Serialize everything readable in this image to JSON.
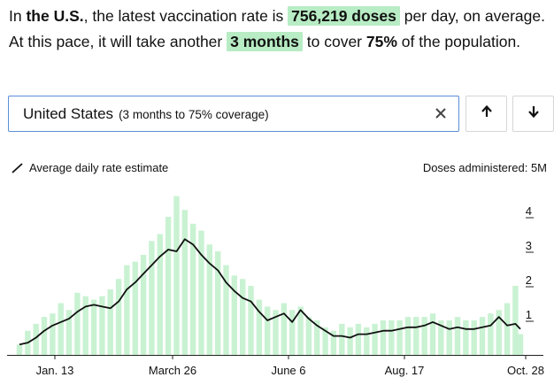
{
  "headline": {
    "part1": "In ",
    "place": "the U.S.",
    "part2": ", the latest vaccination rate is ",
    "rate": "756,219 doses",
    "part3": " per day, on average. At this pace, it will take another ",
    "duration": "3 months",
    "part4": " to cover ",
    "coverage": "75%",
    "part5": " of the population."
  },
  "selector": {
    "country": "United States",
    "note": "(3 months to 75% coverage)"
  },
  "controls": {
    "clear_icon": "close-icon",
    "up_icon": "arrow-up-icon",
    "down_icon": "arrow-down-icon"
  },
  "legend": {
    "line_label": "Average daily rate estimate",
    "bars_label": "Doses administered:",
    "top_tick": "5M"
  },
  "colors": {
    "highlight": "#b8ecc4",
    "bars": "#c9f2d2",
    "line": "#111111",
    "selector_border": "#5b8ed6"
  },
  "chart_data": {
    "type": "bar",
    "ylabel": "Doses administered:",
    "ylim": [
      0,
      5
    ],
    "y_ticks": [
      {
        "value": 5,
        "label": "5M"
      },
      {
        "value": 4,
        "label": "4"
      },
      {
        "value": 3,
        "label": "3"
      },
      {
        "value": 2,
        "label": "2"
      },
      {
        "value": 1,
        "label": "1"
      }
    ],
    "x_ticks": [
      "Jan. 13",
      "March 26",
      "June 6",
      "Aug. 17",
      "Oct. 28"
    ],
    "series": [
      {
        "name": "Average daily rate estimate",
        "kind": "line",
        "points": [
          {
            "day": 0,
            "value": 0.3
          },
          {
            "day": 5,
            "value": 0.35
          },
          {
            "day": 10,
            "value": 0.5
          },
          {
            "day": 15,
            "value": 0.7
          },
          {
            "day": 20,
            "value": 0.85
          },
          {
            "day": 25,
            "value": 0.95
          },
          {
            "day": 30,
            "value": 1.05
          },
          {
            "day": 35,
            "value": 1.25
          },
          {
            "day": 40,
            "value": 1.4
          },
          {
            "day": 45,
            "value": 1.45
          },
          {
            "day": 50,
            "value": 1.4
          },
          {
            "day": 55,
            "value": 1.35
          },
          {
            "day": 60,
            "value": 1.55
          },
          {
            "day": 65,
            "value": 1.9
          },
          {
            "day": 70,
            "value": 2.1
          },
          {
            "day": 75,
            "value": 2.35
          },
          {
            "day": 80,
            "value": 2.6
          },
          {
            "day": 85,
            "value": 2.85
          },
          {
            "day": 90,
            "value": 3.05
          },
          {
            "day": 95,
            "value": 3.0
          },
          {
            "day": 100,
            "value": 3.35
          },
          {
            "day": 105,
            "value": 3.2
          },
          {
            "day": 110,
            "value": 2.9
          },
          {
            "day": 115,
            "value": 2.65
          },
          {
            "day": 120,
            "value": 2.45
          },
          {
            "day": 125,
            "value": 2.1
          },
          {
            "day": 130,
            "value": 1.85
          },
          {
            "day": 135,
            "value": 1.65
          },
          {
            "day": 140,
            "value": 1.55
          },
          {
            "day": 145,
            "value": 1.25
          },
          {
            "day": 150,
            "value": 1.0
          },
          {
            "day": 155,
            "value": 1.1
          },
          {
            "day": 160,
            "value": 1.2
          },
          {
            "day": 165,
            "value": 0.95
          },
          {
            "day": 170,
            "value": 1.3
          },
          {
            "day": 175,
            "value": 1.05
          },
          {
            "day": 180,
            "value": 0.85
          },
          {
            "day": 185,
            "value": 0.7
          },
          {
            "day": 190,
            "value": 0.55
          },
          {
            "day": 195,
            "value": 0.55
          },
          {
            "day": 200,
            "value": 0.5
          },
          {
            "day": 205,
            "value": 0.6
          },
          {
            "day": 210,
            "value": 0.6
          },
          {
            "day": 215,
            "value": 0.65
          },
          {
            "day": 220,
            "value": 0.7
          },
          {
            "day": 225,
            "value": 0.7
          },
          {
            "day": 230,
            "value": 0.75
          },
          {
            "day": 235,
            "value": 0.8
          },
          {
            "day": 240,
            "value": 0.8
          },
          {
            "day": 245,
            "value": 0.85
          },
          {
            "day": 250,
            "value": 0.95
          },
          {
            "day": 255,
            "value": 0.85
          },
          {
            "day": 260,
            "value": 0.75
          },
          {
            "day": 265,
            "value": 0.8
          },
          {
            "day": 270,
            "value": 0.75
          },
          {
            "day": 275,
            "value": 0.75
          },
          {
            "day": 280,
            "value": 0.8
          },
          {
            "day": 285,
            "value": 0.85
          },
          {
            "day": 290,
            "value": 1.1
          },
          {
            "day": 295,
            "value": 0.85
          },
          {
            "day": 300,
            "value": 0.9
          },
          {
            "day": 303,
            "value": 0.75
          }
        ]
      },
      {
        "name": "Doses administered",
        "kind": "bar",
        "points": [
          {
            "day": 0,
            "value": 0.3
          },
          {
            "day": 5,
            "value": 0.7
          },
          {
            "day": 10,
            "value": 0.9
          },
          {
            "day": 15,
            "value": 1.1
          },
          {
            "day": 20,
            "value": 1.2
          },
          {
            "day": 25,
            "value": 1.5
          },
          {
            "day": 30,
            "value": 1.3
          },
          {
            "day": 35,
            "value": 1.8
          },
          {
            "day": 40,
            "value": 1.7
          },
          {
            "day": 45,
            "value": 1.6
          },
          {
            "day": 50,
            "value": 1.7
          },
          {
            "day": 55,
            "value": 1.9
          },
          {
            "day": 60,
            "value": 2.2
          },
          {
            "day": 65,
            "value": 2.6
          },
          {
            "day": 70,
            "value": 2.7
          },
          {
            "day": 75,
            "value": 2.9
          },
          {
            "day": 80,
            "value": 3.3
          },
          {
            "day": 85,
            "value": 3.5
          },
          {
            "day": 90,
            "value": 4.0
          },
          {
            "day": 95,
            "value": 4.6
          },
          {
            "day": 100,
            "value": 4.2
          },
          {
            "day": 105,
            "value": 3.8
          },
          {
            "day": 110,
            "value": 3.6
          },
          {
            "day": 115,
            "value": 3.2
          },
          {
            "day": 120,
            "value": 3.0
          },
          {
            "day": 125,
            "value": 2.6
          },
          {
            "day": 130,
            "value": 2.3
          },
          {
            "day": 135,
            "value": 2.2
          },
          {
            "day": 140,
            "value": 2.0
          },
          {
            "day": 145,
            "value": 1.6
          },
          {
            "day": 150,
            "value": 1.4
          },
          {
            "day": 155,
            "value": 1.3
          },
          {
            "day": 160,
            "value": 1.5
          },
          {
            "day": 165,
            "value": 1.3
          },
          {
            "day": 170,
            "value": 1.4
          },
          {
            "day": 175,
            "value": 1.1
          },
          {
            "day": 180,
            "value": 1.0
          },
          {
            "day": 185,
            "value": 0.8
          },
          {
            "day": 190,
            "value": 0.7
          },
          {
            "day": 195,
            "value": 0.9
          },
          {
            "day": 200,
            "value": 0.8
          },
          {
            "day": 205,
            "value": 0.9
          },
          {
            "day": 210,
            "value": 0.8
          },
          {
            "day": 215,
            "value": 0.9
          },
          {
            "day": 220,
            "value": 1.0
          },
          {
            "day": 225,
            "value": 1.0
          },
          {
            "day": 230,
            "value": 1.0
          },
          {
            "day": 235,
            "value": 1.1
          },
          {
            "day": 240,
            "value": 1.1
          },
          {
            "day": 245,
            "value": 1.1
          },
          {
            "day": 250,
            "value": 1.2
          },
          {
            "day": 255,
            "value": 1.0
          },
          {
            "day": 260,
            "value": 1.0
          },
          {
            "day": 265,
            "value": 1.1
          },
          {
            "day": 270,
            "value": 1.0
          },
          {
            "day": 275,
            "value": 1.0
          },
          {
            "day": 280,
            "value": 1.1
          },
          {
            "day": 285,
            "value": 1.2
          },
          {
            "day": 290,
            "value": 1.3
          },
          {
            "day": 295,
            "value": 1.5
          },
          {
            "day": 300,
            "value": 2.0
          },
          {
            "day": 303,
            "value": 0.6
          }
        ]
      }
    ],
    "grid": false,
    "legend": "top-left"
  }
}
